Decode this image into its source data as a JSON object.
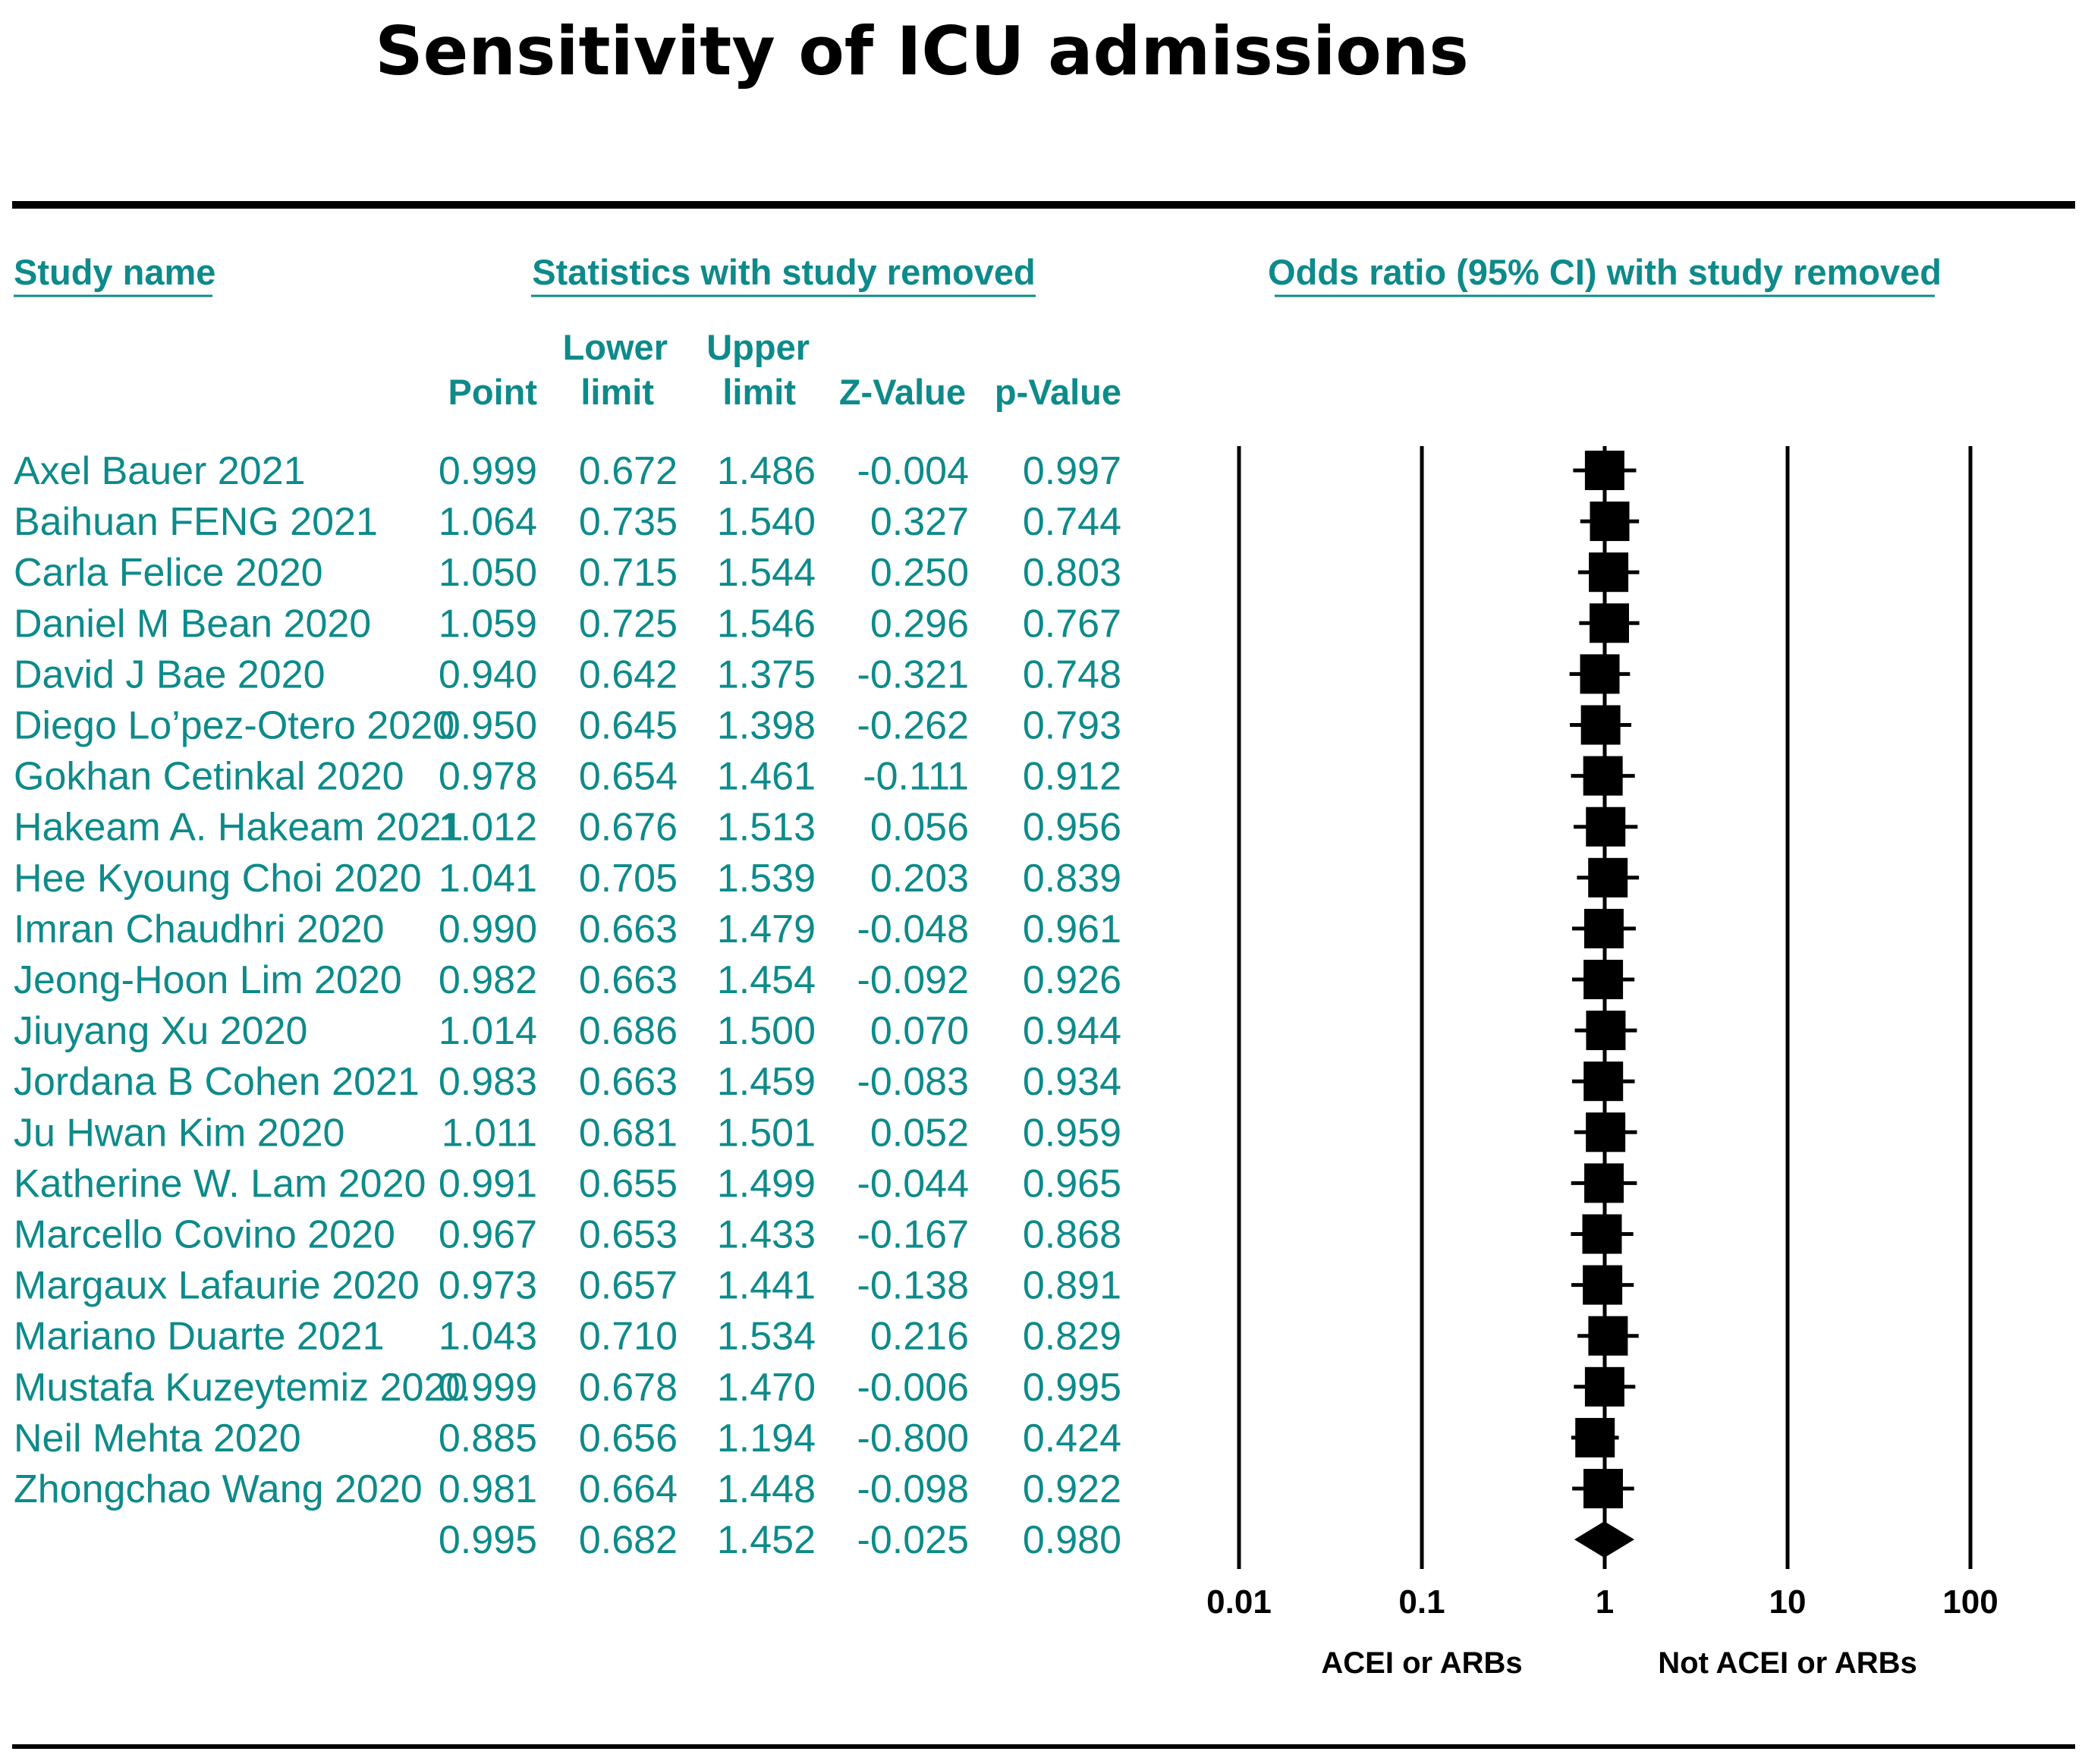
{
  "chart_data": {
    "type": "forest",
    "title": "Sensitivity of ICU admissions",
    "headers": {
      "study_name": "Study name",
      "statistics": "Statistics with study removed",
      "plot": "Odds ratio (95% CI) with study removed",
      "point": "Point",
      "lower_line1": "Lower",
      "lower_line2": "limit",
      "upper_line1": "Upper",
      "upper_line2": "limit",
      "z_value": "Z-Value",
      "p_value": "p-Value"
    },
    "rows": [
      {
        "study": "Axel Bauer 2021",
        "point": "0.999",
        "lower": "0.672",
        "upper": "1.486",
        "z": "-0.004",
        "p": "0.997"
      },
      {
        "study": "Baihuan FENG 2021",
        "point": "1.064",
        "lower": "0.735",
        "upper": "1.540",
        "z": "0.327",
        "p": "0.744"
      },
      {
        "study": "Carla Felice 2020",
        "point": "1.050",
        "lower": "0.715",
        "upper": "1.544",
        "z": "0.250",
        "p": "0.803"
      },
      {
        "study": "Daniel M Bean 2020",
        "point": "1.059",
        "lower": "0.725",
        "upper": "1.546",
        "z": "0.296",
        "p": "0.767"
      },
      {
        "study": "David J Bae 2020",
        "point": "0.940",
        "lower": "0.642",
        "upper": "1.375",
        "z": "-0.321",
        "p": "0.748"
      },
      {
        "study": "Diego Lo’pez-Otero 2020",
        "point": "0.950",
        "lower": "0.645",
        "upper": "1.398",
        "z": "-0.262",
        "p": "0.793"
      },
      {
        "study": "Gokhan Cetinkal 2020",
        "point": "0.978",
        "lower": "0.654",
        "upper": "1.461",
        "z": "-0.111",
        "p": "0.912"
      },
      {
        "study": "Hakeam A. Hakeam 2021",
        "point": "1.012",
        "lower": "0.676",
        "upper": "1.513",
        "z": "0.056",
        "p": "0.956"
      },
      {
        "study": "Hee Kyoung Choi 2020",
        "point": "1.041",
        "lower": "0.705",
        "upper": "1.539",
        "z": "0.203",
        "p": "0.839"
      },
      {
        "study": "Imran Chaudhri 2020",
        "point": "0.990",
        "lower": "0.663",
        "upper": "1.479",
        "z": "-0.048",
        "p": "0.961"
      },
      {
        "study": "Jeong-Hoon Lim 2020",
        "point": "0.982",
        "lower": "0.663",
        "upper": "1.454",
        "z": "-0.092",
        "p": "0.926"
      },
      {
        "study": "Jiuyang Xu 2020",
        "point": "1.014",
        "lower": "0.686",
        "upper": "1.500",
        "z": "0.070",
        "p": "0.944"
      },
      {
        "study": "Jordana B Cohen 2021",
        "point": "0.983",
        "lower": "0.663",
        "upper": "1.459",
        "z": "-0.083",
        "p": "0.934"
      },
      {
        "study": "Ju Hwan Kim 2020",
        "point": "1.011",
        "lower": "0.681",
        "upper": "1.501",
        "z": "0.052",
        "p": "0.959"
      },
      {
        "study": "Katherine W. Lam 2020",
        "point": "0.991",
        "lower": "0.655",
        "upper": "1.499",
        "z": "-0.044",
        "p": "0.965"
      },
      {
        "study": "Marcello Covino 2020",
        "point": "0.967",
        "lower": "0.653",
        "upper": "1.433",
        "z": "-0.167",
        "p": "0.868"
      },
      {
        "study": "Margaux Lafaurie 2020",
        "point": "0.973",
        "lower": "0.657",
        "upper": "1.441",
        "z": "-0.138",
        "p": "0.891"
      },
      {
        "study": "Mariano Duarte 2021",
        "point": "1.043",
        "lower": "0.710",
        "upper": "1.534",
        "z": "0.216",
        "p": "0.829"
      },
      {
        "study": "Mustafa Kuzeytemiz 2020",
        "point": "0.999",
        "lower": "0.678",
        "upper": "1.470",
        "z": "-0.006",
        "p": "0.995"
      },
      {
        "study": "Neil Mehta 2020",
        "point": "0.885",
        "lower": "0.656",
        "upper": "1.194",
        "z": "-0.800",
        "p": "0.424"
      },
      {
        "study": "Zhongchao Wang 2020",
        "point": "0.981",
        "lower": "0.664",
        "upper": "1.448",
        "z": "-0.098",
        "p": "0.922"
      }
    ],
    "summary": {
      "point": "0.995",
      "lower": "0.682",
      "upper": "1.452",
      "z": "-0.025",
      "p": "0.980"
    },
    "x_axis": {
      "scale": "log",
      "range": [
        0.01,
        100
      ],
      "ticks": [
        "0.01",
        "0.1",
        "1",
        "10",
        "100"
      ],
      "favours_left": "ACEI or ARBs",
      "favours_right": "Not ACEI or ARBs"
    },
    "colors": {
      "text": "#0e8a8a",
      "marks": "#000000",
      "lines": "#000000"
    }
  }
}
